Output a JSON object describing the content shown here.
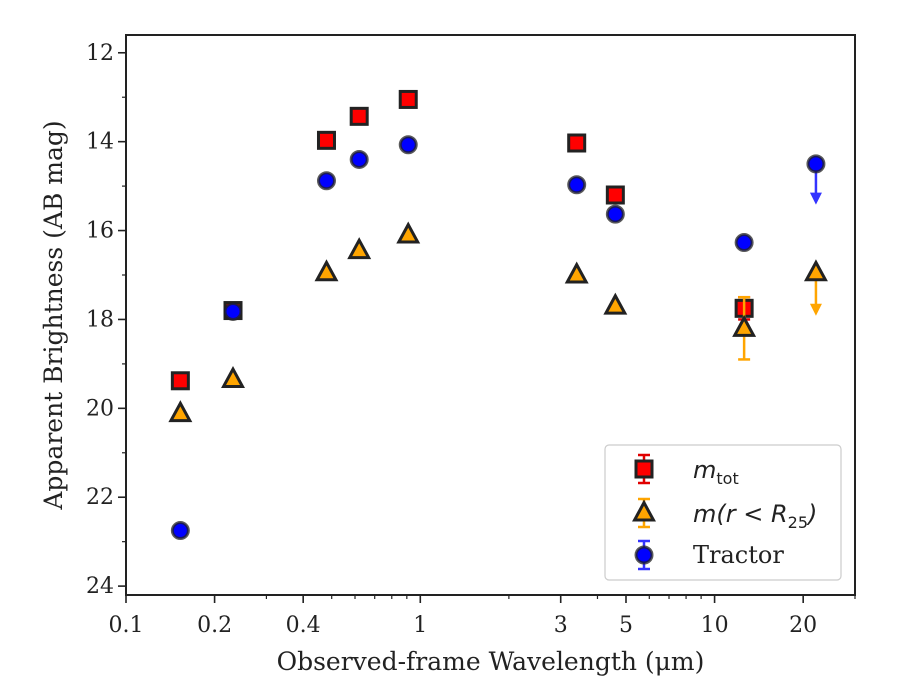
{
  "chart_data": {
    "type": "scatter",
    "title": "",
    "xlabel": "Observed-frame Wavelength (μm)",
    "ylabel": "Apparent Brightness (AB mag)",
    "x_scale": "log",
    "xlim": [
      0.1,
      30
    ],
    "ylim": [
      24.2,
      11.6
    ],
    "y_inverted": true,
    "grid": false,
    "legend_position": "bottom-right",
    "x_ticks": [
      {
        "value": 0.1,
        "label": "0.1"
      },
      {
        "value": 0.2,
        "label": "0.2"
      },
      {
        "value": 0.4,
        "label": "0.4"
      },
      {
        "value": 1,
        "label": "1"
      },
      {
        "value": 3,
        "label": "3"
      },
      {
        "value": 5,
        "label": "5"
      },
      {
        "value": 10,
        "label": "10"
      },
      {
        "value": 20,
        "label": "20"
      }
    ],
    "y_ticks": [
      {
        "value": 12,
        "label": "12"
      },
      {
        "value": 14,
        "label": "14"
      },
      {
        "value": 16,
        "label": "16"
      },
      {
        "value": 18,
        "label": "18"
      },
      {
        "value": 20,
        "label": "20"
      },
      {
        "value": 22,
        "label": "22"
      },
      {
        "value": 24,
        "label": "24"
      }
    ],
    "legend": [
      {
        "series": "m_tot",
        "label_main": "m",
        "label_sub": "tot",
        "label_style": "math-subscript"
      },
      {
        "series": "m_r25",
        "label_main": "m(r < R",
        "label_sub": "25",
        "label_tail": ")",
        "label_style": "math-subscript"
      },
      {
        "series": "tractor",
        "label_main": "Tractor",
        "label_style": "text"
      }
    ],
    "series": [
      {
        "id": "m_tot",
        "marker": "square",
        "color": "#ff0000",
        "edge_color": "#222222",
        "error_color": "#e00000",
        "points": [
          {
            "x": 0.153,
            "y": 19.38
          },
          {
            "x": 0.231,
            "y": 17.8
          },
          {
            "x": 0.48,
            "y": 13.97
          },
          {
            "x": 0.62,
            "y": 13.43
          },
          {
            "x": 0.91,
            "y": 13.05
          },
          {
            "x": 3.4,
            "y": 14.03
          },
          {
            "x": 4.6,
            "y": 15.2
          },
          {
            "x": 12.6,
            "y": 17.75,
            "yerr": 0.25
          }
        ]
      },
      {
        "id": "m_r25",
        "marker": "triangle",
        "color": "#ffa500",
        "edge_color": "#222222",
        "error_color": "#ffa500",
        "points": [
          {
            "x": 0.153,
            "y": 20.12
          },
          {
            "x": 0.231,
            "y": 19.35
          },
          {
            "x": 0.48,
            "y": 16.95
          },
          {
            "x": 0.62,
            "y": 16.45
          },
          {
            "x": 0.91,
            "y": 16.1
          },
          {
            "x": 3.4,
            "y": 17.0
          },
          {
            "x": 4.6,
            "y": 17.7
          },
          {
            "x": 12.6,
            "y": 18.2,
            "yerr": 0.7
          },
          {
            "x": 22.1,
            "y": 16.95,
            "upper_limit": true,
            "arrow_to": 17.85
          }
        ]
      },
      {
        "id": "tractor",
        "marker": "circle",
        "color": "#0000ff",
        "edge_color": "#222222",
        "error_color": "#3333ff",
        "points": [
          {
            "x": 0.153,
            "y": 22.75
          },
          {
            "x": 0.231,
            "y": 17.82
          },
          {
            "x": 0.48,
            "y": 14.88
          },
          {
            "x": 0.62,
            "y": 14.4
          },
          {
            "x": 0.91,
            "y": 14.07
          },
          {
            "x": 3.4,
            "y": 14.97
          },
          {
            "x": 4.6,
            "y": 15.63
          },
          {
            "x": 12.6,
            "y": 16.27
          },
          {
            "x": 22.1,
            "y": 14.5,
            "upper_limit": true,
            "arrow_to": 15.35
          }
        ]
      }
    ]
  }
}
